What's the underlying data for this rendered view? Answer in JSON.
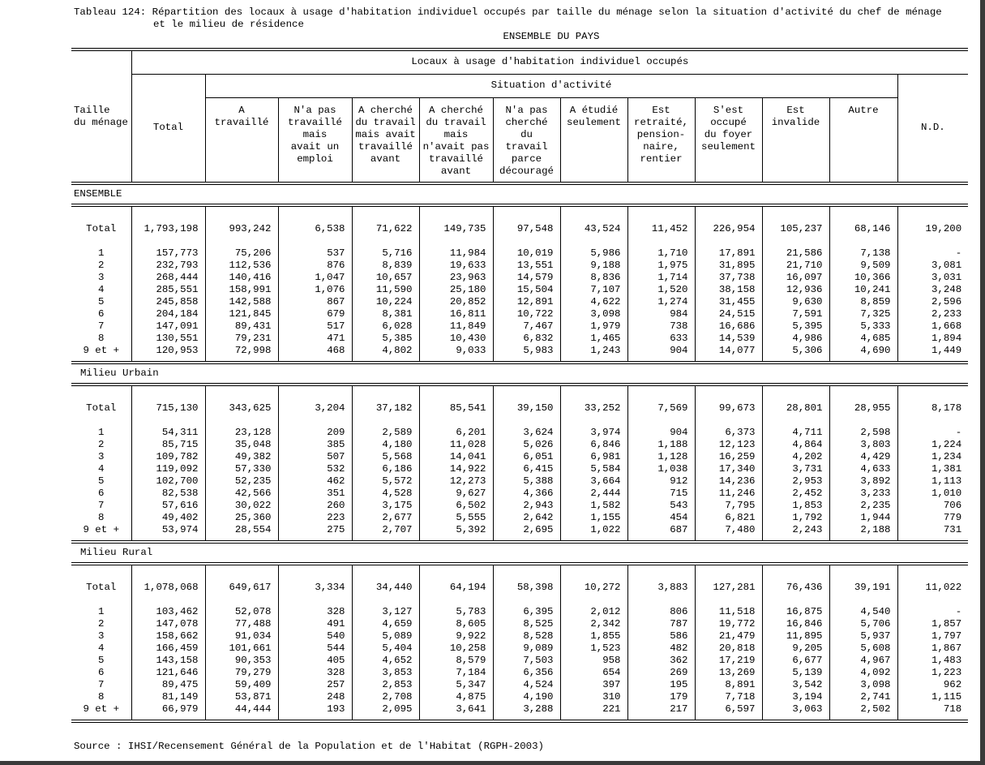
{
  "title_line1": "Tableau 124: Répartition des locaux à usage d'habitation individuel occupés par taille du ménage selon la situation d'activité du chef de ménage",
  "title_line2": "et le milieu de résidence",
  "subtitle": "ENSEMBLE DU PAYS",
  "header": {
    "row_header": "Taille\ndu ménage",
    "main_group": "Locaux à usage d'habitation individuel occupés",
    "total": "Total",
    "activity_group": "Situation d'activité",
    "nd": "N.D.",
    "activity_columns": [
      "A\ntravaillé",
      "N'a pas\ntravaillé\nmais\navait un\nemploi",
      "A cherché\ndu travail\nmais avait\ntravaillé\navant",
      "A cherché\ndu travail\nmais\nn'avait pas\ntravaillé\navant",
      "N'a pas\ncherché\ndu\ntravail\nparce\ndécouragé",
      "A étudié\nseulement",
      "Est\nretraité,\npension-\nnaire,\nrentier",
      "S'est\noccupé\ndu foyer\nseulement",
      "Est\ninvalide",
      "Autre"
    ]
  },
  "sections": [
    {
      "label": "ENSEMBLE",
      "rows": [
        [
          "Total",
          "1,793,198",
          "993,242",
          "6,538",
          "71,622",
          "149,735",
          "97,548",
          "43,524",
          "11,452",
          "226,954",
          "105,237",
          "68,146",
          "19,200"
        ],
        [
          "1",
          "157,773",
          "75,206",
          "537",
          "5,716",
          "11,984",
          "10,019",
          "5,986",
          "1,710",
          "17,891",
          "21,586",
          "7,138",
          "-"
        ],
        [
          "2",
          "232,793",
          "112,536",
          "876",
          "8,839",
          "19,633",
          "13,551",
          "9,188",
          "1,975",
          "31,895",
          "21,710",
          "9,509",
          "3,081"
        ],
        [
          "3",
          "268,444",
          "140,416",
          "1,047",
          "10,657",
          "23,963",
          "14,579",
          "8,836",
          "1,714",
          "37,738",
          "16,097",
          "10,366",
          "3,031"
        ],
        [
          "4",
          "285,551",
          "158,991",
          "1,076",
          "11,590",
          "25,180",
          "15,504",
          "7,107",
          "1,520",
          "38,158",
          "12,936",
          "10,241",
          "3,248"
        ],
        [
          "5",
          "245,858",
          "142,588",
          "867",
          "10,224",
          "20,852",
          "12,891",
          "4,622",
          "1,274",
          "31,455",
          "9,630",
          "8,859",
          "2,596"
        ],
        [
          "6",
          "204,184",
          "121,845",
          "679",
          "8,381",
          "16,811",
          "10,722",
          "3,098",
          "984",
          "24,515",
          "7,591",
          "7,325",
          "2,233"
        ],
        [
          "7",
          "147,091",
          "89,431",
          "517",
          "6,028",
          "11,849",
          "7,467",
          "1,979",
          "738",
          "16,686",
          "5,395",
          "5,333",
          "1,668"
        ],
        [
          "8",
          "130,551",
          "79,231",
          "471",
          "5,385",
          "10,430",
          "6,832",
          "1,465",
          "633",
          "14,539",
          "4,986",
          "4,685",
          "1,894"
        ],
        [
          "9 et +",
          "120,953",
          "72,998",
          "468",
          "4,802",
          "9,033",
          "5,983",
          "1,243",
          "904",
          "14,077",
          "5,306",
          "4,690",
          "1,449"
        ]
      ]
    },
    {
      "label": "Milieu Urbain",
      "rows": [
        [
          "Total",
          "715,130",
          "343,625",
          "3,204",
          "37,182",
          "85,541",
          "39,150",
          "33,252",
          "7,569",
          "99,673",
          "28,801",
          "28,955",
          "8,178"
        ],
        [
          "1",
          "54,311",
          "23,128",
          "209",
          "2,589",
          "6,201",
          "3,624",
          "3,974",
          "904",
          "6,373",
          "4,711",
          "2,598",
          "-"
        ],
        [
          "2",
          "85,715",
          "35,048",
          "385",
          "4,180",
          "11,028",
          "5,026",
          "6,846",
          "1,188",
          "12,123",
          "4,864",
          "3,803",
          "1,224"
        ],
        [
          "3",
          "109,782",
          "49,382",
          "507",
          "5,568",
          "14,041",
          "6,051",
          "6,981",
          "1,128",
          "16,259",
          "4,202",
          "4,429",
          "1,234"
        ],
        [
          "4",
          "119,092",
          "57,330",
          "532",
          "6,186",
          "14,922",
          "6,415",
          "5,584",
          "1,038",
          "17,340",
          "3,731",
          "4,633",
          "1,381"
        ],
        [
          "5",
          "102,700",
          "52,235",
          "462",
          "5,572",
          "12,273",
          "5,388",
          "3,664",
          "912",
          "14,236",
          "2,953",
          "3,892",
          "1,113"
        ],
        [
          "6",
          "82,538",
          "42,566",
          "351",
          "4,528",
          "9,627",
          "4,366",
          "2,444",
          "715",
          "11,246",
          "2,452",
          "3,233",
          "1,010"
        ],
        [
          "7",
          "57,616",
          "30,022",
          "260",
          "3,175",
          "6,502",
          "2,943",
          "1,582",
          "543",
          "7,795",
          "1,853",
          "2,235",
          "706"
        ],
        [
          "8",
          "49,402",
          "25,360",
          "223",
          "2,677",
          "5,555",
          "2,642",
          "1,155",
          "454",
          "6,821",
          "1,792",
          "1,944",
          "779"
        ],
        [
          "9 et +",
          "53,974",
          "28,554",
          "275",
          "2,707",
          "5,392",
          "2,695",
          "1,022",
          "687",
          "7,480",
          "2,243",
          "2,188",
          "731"
        ]
      ]
    },
    {
      "label": "Milieu Rural",
      "rows": [
        [
          "Total",
          "1,078,068",
          "649,617",
          "3,334",
          "34,440",
          "64,194",
          "58,398",
          "10,272",
          "3,883",
          "127,281",
          "76,436",
          "39,191",
          "11,022"
        ],
        [
          "1",
          "103,462",
          "52,078",
          "328",
          "3,127",
          "5,783",
          "6,395",
          "2,012",
          "806",
          "11,518",
          "16,875",
          "4,540",
          "-"
        ],
        [
          "2",
          "147,078",
          "77,488",
          "491",
          "4,659",
          "8,605",
          "8,525",
          "2,342",
          "787",
          "19,772",
          "16,846",
          "5,706",
          "1,857"
        ],
        [
          "3",
          "158,662",
          "91,034",
          "540",
          "5,089",
          "9,922",
          "8,528",
          "1,855",
          "586",
          "21,479",
          "11,895",
          "5,937",
          "1,797"
        ],
        [
          "4",
          "166,459",
          "101,661",
          "544",
          "5,404",
          "10,258",
          "9,089",
          "1,523",
          "482",
          "20,818",
          "9,205",
          "5,608",
          "1,867"
        ],
        [
          "5",
          "143,158",
          "90,353",
          "405",
          "4,652",
          "8,579",
          "7,503",
          "958",
          "362",
          "17,219",
          "6,677",
          "4,967",
          "1,483"
        ],
        [
          "6",
          "121,646",
          "79,279",
          "328",
          "3,853",
          "7,184",
          "6,356",
          "654",
          "269",
          "13,269",
          "5,139",
          "4,092",
          "1,223"
        ],
        [
          "7",
          "89,475",
          "59,409",
          "257",
          "2,853",
          "5,347",
          "4,524",
          "397",
          "195",
          "8,891",
          "3,542",
          "3,098",
          "962"
        ],
        [
          "8",
          "81,149",
          "53,871",
          "248",
          "2,708",
          "4,875",
          "4,190",
          "310",
          "179",
          "7,718",
          "3,194",
          "2,741",
          "1,115"
        ],
        [
          "9 et +",
          "66,979",
          "44,444",
          "193",
          "2,095",
          "3,641",
          "3,288",
          "221",
          "217",
          "6,597",
          "3,063",
          "2,502",
          "718"
        ]
      ]
    }
  ],
  "source": "Source : IHSI/Recensement Général de la Population et de l'Habitat (RGPH-2003)"
}
